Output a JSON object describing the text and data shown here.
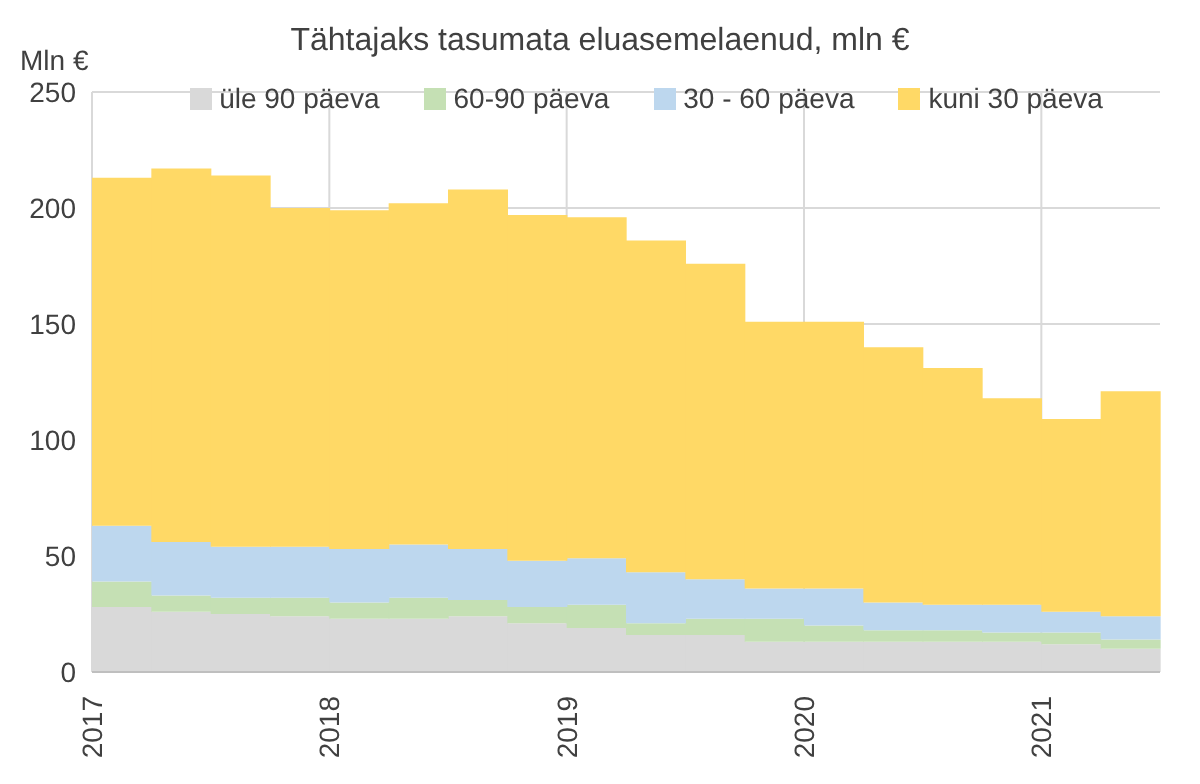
{
  "chart_data": {
    "type": "bar",
    "title": "Tähtajaks tasumata eluasemelaenud, mln €",
    "ylabel": "Mln €",
    "categories": [
      "2017",
      null,
      null,
      null,
      "2018",
      null,
      null,
      null,
      "2019",
      null,
      null,
      null,
      "2020",
      null,
      null,
      null,
      "2021",
      null
    ],
    "stacked": true,
    "series": [
      {
        "name": "üle 90 päeva",
        "color": "#d9d9d9",
        "values": [
          28,
          26,
          25,
          24,
          23,
          23,
          24,
          21,
          19,
          16,
          16,
          13,
          13,
          13,
          13,
          13,
          12,
          10
        ]
      },
      {
        "name": "60-90 päeva",
        "color": "#c5e0b4",
        "values": [
          11,
          7,
          7,
          8,
          7,
          9,
          7,
          7,
          10,
          5,
          7,
          10,
          7,
          5,
          5,
          4,
          5,
          4
        ]
      },
      {
        "name": "30 - 60 päeva",
        "color": "#bdd7ee",
        "values": [
          24,
          23,
          22,
          22,
          23,
          23,
          22,
          20,
          20,
          22,
          17,
          13,
          16,
          12,
          11,
          12,
          9,
          10
        ]
      },
      {
        "name": "kuni 30 päeva",
        "color": "#ffd966",
        "values": [
          150,
          161,
          160,
          146,
          146,
          147,
          155,
          149,
          147,
          143,
          136,
          115,
          115,
          110,
          102,
          89,
          83,
          97
        ]
      }
    ],
    "ylim": [
      0,
      250
    ],
    "yticks": [
      0,
      50,
      100,
      150,
      200,
      250
    ],
    "grid": true,
    "legend": "top"
  }
}
